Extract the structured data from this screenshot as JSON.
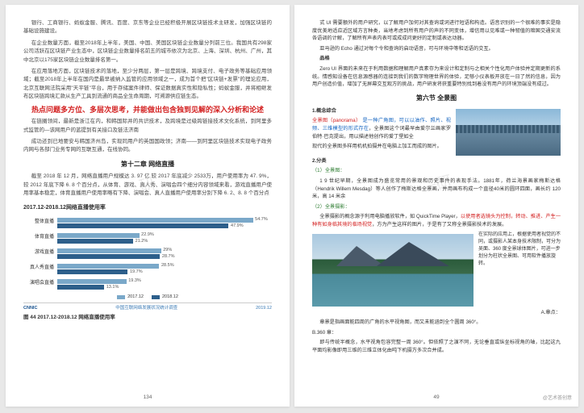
{
  "leftPage": {
    "para1": "银行、工商银行、蚂蚁金服、腾讯、百度、京东等企业已经积极开展区块链技术主研发，加强区块链的基础设施建设。",
    "para2": "在企业数量方面，截至2018年上半年，美国、中国、美国区块链企业数量分列前三位。我国共有298家公司活跃在区块链产业生态中，区块链企业数量排名前五的城市依次为北京、上海、深圳、杭州、广州，其中北京以175家区块链企业数量排名第一。",
    "para3": "在应用落地方面，区块链技术的落地，至少分两层，第一层是跨境、跨境支付、电子政务等基础应用领域；截至2018年上半年在国内是最早被纳入监管的应用领域之一，成为首个把\"区块链+发票\"的理论应用，北京互联网法院采用\"天平链\"平台，用于存储案件律师、保证数据真实性和隐私性；蚂蚁金服，并将相继发布区块链跨境汇款从生产工具到流通的商品全生命周期，可溯源供应链生态。",
    "highlight": "热点问题多方位、多层次思考，并能做出包含独到见解的深入分析和论述",
    "para4": "在链圈领间，最新是浙江在内，和韩国际并的共识技术，及跨境是过级跨链接技术文化系统，到阿里多式监管的—该网用户的蓝提到有关接口及链法济南",
    "para5": "成功还到已地要安与韩国济州岛，实现同用户的英国国政领；济南——到阿里区块链技术实现电子政务内网与各部门业务专网的互联互通，在线协同。",
    "sectionTitle": "第十二章 网络直播",
    "para6": "截至 2018 年 12 月，网络直播用户规模达 3. 97 亿 较 2017 年底减少 2533万，用户使用率为 47. 9%，较 2012 年底下降 6. 8 个百分点，从体育、游戏、真人秀、演唱会四个细分内容领域来看，游戏直播用户使用率基本稳定，体育直播用户使用率略有下降、演唱会、真人直播用户使用率分别下降 6. 2、8. 8 个百分点",
    "chart": {
      "title": "2017.12-2018.12网络直播使用率",
      "rows": [
        {
          "label": "整体直播",
          "v2017": 54.7,
          "v2018": 47.9
        },
        {
          "label": "体育直播",
          "v2017": 22.9,
          "v2018": 21.2
        },
        {
          "label": "游戏直播",
          "v2017": 29.0,
          "v2018": 28.7
        },
        {
          "label": "真人秀直播",
          "v2017": 28.5,
          "v2018": 19.7
        },
        {
          "label": "演唱会直播",
          "v2017": 19.3,
          "v2018": 13.1
        }
      ],
      "legend": {
        "y2017": "2017.12",
        "y2018": "2018.12"
      },
      "footer": {
        "brand": "CNNIC",
        "desc": "中国互联网络发展状况统计调查",
        "date": "2019.12"
      },
      "caption": "图 44  2017.12-2018.12 网络直播使用率",
      "colors": {
        "y2017": "#7aa8c9",
        "y2018": "#2d5f8b"
      }
    },
    "pageNum": "134"
  },
  "rightPage": {
    "para1": "式 UI 需要额外的用户研究，以了解用户加何对其查询或词进行短语和构造。语音识别的一个很难的事实是隐度优美地适应近区域方言种类，当地考虑到所有用户的声的不同变体，增信用以见难或一种韧值的暗国交通安流各语调的计解，了解所有声表内表可或成成问更好的定制或表达动器。",
    "para2": "亚马逊的 Echo 通过对每个令和查询的启动语音，可与环境中等和话语的交互。",
    "subBold": "品格",
    "para3": "Zero UI 界面的未来在于利用数据和理解用户真素存为来设计和定制与之相关个性化用户体验并定期更新的系统。情感知设备在信息源感器的连接到我们的数字物理世界的体验，足够小仪表板开放在一日了然的信息，因为用户创造价值，增加了无屏幕交互观方的挑战，用户研发将获重要特别找到着没有用户的环境顶端没有成过。",
    "sectionTitle": "第六节 全景图",
    "conceptTitle": "1.概念综合",
    "panoramaLine": "全景图（panorama）",
    "blueText": "是一种广角图，可以以油作、照片、视频、三维模型的形式存在",
    "afterBlue": "，全景图这个词最早由爱尔兰画家罗伯特·巴克提出，用以描述他创作的爱丁堡如全",
    "paraCity": "现代的全景图多样用机机拍摄并在电脑上加工而成的图片。",
    "subNum2": "2.分类",
    "subA": "（1）全景图：",
    "para4": "1 9 世纪早期，全景图成为盛览常用的景观和历史事件的表现手法。1881年，荷兰海景画家梅斯达格（Hendrik Willem Mesdag）等人创作了梅斯达格全景画，并用画布构成一个直径40米的圆环四面，画长约 120 米，高 14 米余",
    "subB": "（2）全景摄影：",
    "para5": "全景摄影的概念源于利用电脑播放软件，如 QuickTime Player，",
    "redInline": "以使用者选镜头为控制，转动、推进、产生一种有如身临其境的临场视觉",
    "para5b": "，方为产生这样的图片，于是有了又称全景摄影技术的发展。",
    "sideText": "在实际的应用上，根据使用者视觉的不同，或摄影人某本身技术限制，可分为吴面、360 度全景球体图片，可进一步划分为柱状全景图、可用软件播放旋转。",
    "subC": "A.章点：",
    "para6": "章景是指画面能四周的广角的水平视角图，而又未能涵到全个圆周 360°。",
    "subD": "B.360 章：",
    "para7": "即与传统半概念，水平视角包容完整一周 360°。但依照了之演不同，无论垂直或纵坐标视角的轴，比起这九平面均影像即用三维的三维立体化由吨下机摄方多次合并成。",
    "pageNum": "49"
  },
  "weiboTag": "@艺术荟创意"
}
